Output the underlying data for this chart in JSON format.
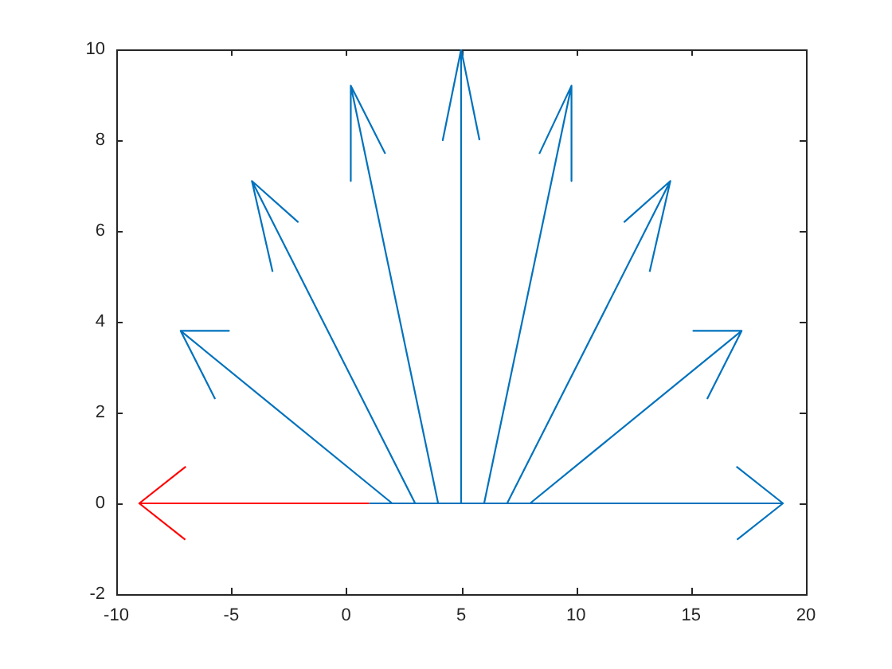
{
  "chart_data": {
    "type": "line",
    "marker": "none",
    "xlim": [
      -10,
      20
    ],
    "ylim": [
      -2,
      10
    ],
    "xticks": [
      -10,
      -5,
      0,
      5,
      10,
      15,
      20
    ],
    "yticks": [
      -2,
      0,
      2,
      4,
      6,
      8,
      10
    ],
    "series": [
      {
        "color": "#ff0000",
        "x": [
          1,
          -9,
          -7,
          -9,
          -7
        ],
        "values": [
          0,
          0,
          0.8,
          0,
          -0.8
        ]
      },
      {
        "color": "#0072bd",
        "x": [
          2,
          -7.2,
          -5.1,
          -7.2,
          -5.7
        ],
        "values": [
          0,
          3.8,
          3.8,
          3.8,
          2.3
        ]
      },
      {
        "color": "#0072bd",
        "x": [
          3,
          -4.1,
          -2.1,
          -4.1,
          -3.2
        ],
        "values": [
          0,
          7.1,
          6.2,
          7.1,
          5.1
        ]
      },
      {
        "color": "#0072bd",
        "x": [
          4,
          0.2,
          0.2,
          0.2,
          1.7
        ],
        "values": [
          0,
          9.2,
          7.1,
          9.2,
          7.7
        ]
      },
      {
        "color": "#0072bd",
        "x": [
          5,
          5,
          4.2,
          5,
          5.8
        ],
        "values": [
          0,
          10,
          8,
          10,
          8
        ]
      },
      {
        "color": "#0072bd",
        "x": [
          6,
          9.8,
          9.8,
          9.8,
          8.4
        ],
        "values": [
          0,
          9.2,
          7.1,
          9.2,
          7.7
        ]
      },
      {
        "color": "#0072bd",
        "x": [
          7,
          14.1,
          12.1,
          14.1,
          13.2
        ],
        "values": [
          0,
          7.1,
          6.2,
          7.1,
          5.1
        ]
      },
      {
        "color": "#0072bd",
        "x": [
          8,
          17.2,
          15.1,
          17.2,
          15.7
        ],
        "values": [
          0,
          3.8,
          3.8,
          3.8,
          2.3
        ]
      },
      {
        "color": "#0072bd",
        "x": [
          1,
          9,
          19,
          17,
          19,
          17
        ],
        "values": [
          0,
          0,
          0,
          0.8,
          0,
          -0.8
        ]
      }
    ]
  }
}
